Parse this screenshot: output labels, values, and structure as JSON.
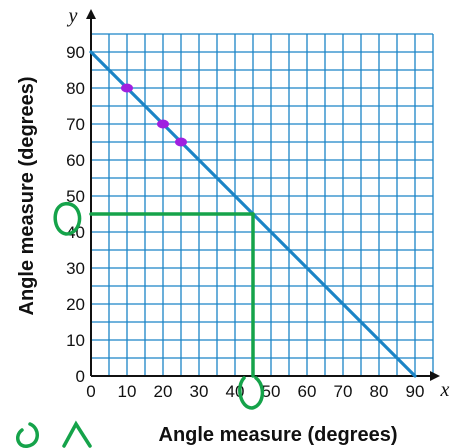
{
  "chart_data": {
    "type": "line",
    "xlabel": "Angle measure (degrees)",
    "ylabel": "Angle measure (degrees)",
    "x_axis_letter": "x",
    "y_axis_letter": "y",
    "xlim": [
      0,
      95
    ],
    "ylim": [
      0,
      95
    ],
    "grid": true,
    "grid_step": 5,
    "x_ticks": [
      0,
      10,
      20,
      30,
      40,
      50,
      60,
      70,
      80,
      90
    ],
    "y_ticks": [
      0,
      10,
      20,
      30,
      40,
      50,
      60,
      70,
      80,
      90
    ],
    "x_tick_labels": [
      "0",
      "10",
      "20",
      "30",
      "40",
      "50",
      "60",
      "70",
      "80",
      "90"
    ],
    "y_tick_labels": [
      "0",
      "10",
      "20",
      "30",
      "40",
      "50",
      "60",
      "70",
      "80",
      "90"
    ],
    "series": [
      {
        "x": [
          0,
          90
        ],
        "y": [
          90,
          0
        ],
        "color": "#1b84c6"
      }
    ],
    "annotations": {
      "marked_points": [
        {
          "x": 10,
          "y": 80
        },
        {
          "x": 20,
          "y": 70
        },
        {
          "x": 25,
          "y": 65
        }
      ],
      "marker_color": "#a020e0",
      "drawn_guides": [
        {
          "x": [
            0,
            45
          ],
          "y": [
            45,
            45
          ]
        },
        {
          "x": [
            45,
            45
          ],
          "y": [
            45,
            0
          ]
        }
      ],
      "guide_color": "#15a34a"
    },
    "colors": {
      "grid": "#1b84c6",
      "axis": "#111111"
    }
  }
}
